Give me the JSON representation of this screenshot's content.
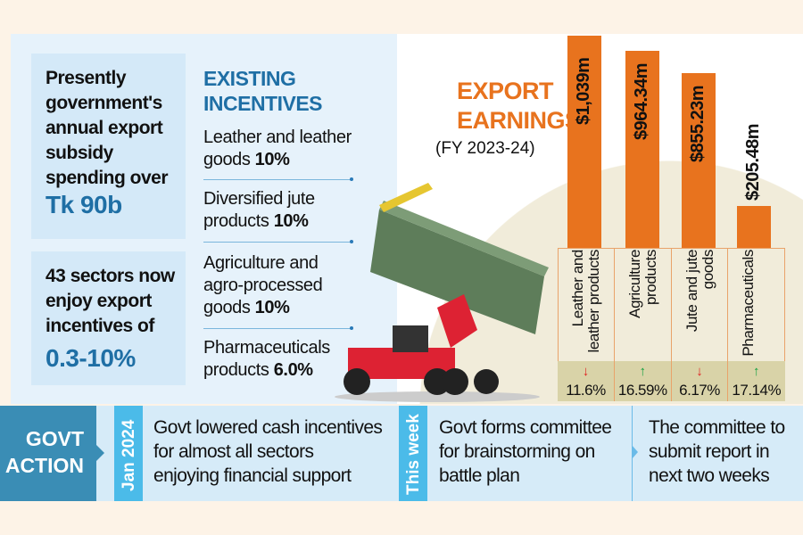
{
  "subsidy_box": {
    "text": "Presently government's annual export subsidy spending over",
    "amount": "Tk 90b"
  },
  "sectors_box": {
    "text": "43 sectors now enjoy export incentives of",
    "range": "0.3-10%"
  },
  "incentives": {
    "title": "EXISTING INCENTIVES",
    "items": [
      {
        "label": "Leather and leather goods",
        "rate": "10%"
      },
      {
        "label": "Diversified jute products",
        "rate": "10%"
      },
      {
        "label": "Agriculture and agro-processed goods",
        "rate": "10%"
      },
      {
        "label": "Pharmaceuticals products",
        "rate": "6.0%"
      }
    ]
  },
  "chart_data": {
    "type": "bar",
    "title": "EXPORT EARNINGS",
    "subtitle": "(FY 2023-24)",
    "categories": [
      "Leather and leather products",
      "Agriculture products",
      "Jute and jute goods",
      "Pharmaceuticals"
    ],
    "values": [
      1039,
      964.34,
      855.23,
      205.48
    ],
    "unit": "million USD",
    "data_labels": [
      "$1,039m",
      "$964.34m",
      "$855.23m",
      "$205.48m"
    ],
    "changes": [
      {
        "text": "11.6%",
        "direction": "down",
        "color": "#e02020"
      },
      {
        "text": "16.59%",
        "direction": "up",
        "color": "#12a040"
      },
      {
        "text": "6.17%",
        "direction": "down",
        "color": "#e02020"
      },
      {
        "text": "17.14%",
        "direction": "up",
        "color": "#12a040"
      }
    ],
    "bar_color": "#e8731e"
  },
  "timeline": {
    "heading": [
      "GOVT",
      "ACTION"
    ],
    "events": [
      {
        "when": "Jan 2024",
        "text": [
          "Govt lowered cash incentives",
          "for almost all sectors",
          "enjoying financial support"
        ]
      },
      {
        "when": "This week",
        "text": [
          "Govt forms committee",
          "for brainstorming on",
          "battle plan"
        ]
      },
      {
        "when": "",
        "text": [
          "The committee to",
          "submit report in",
          "next two weeks"
        ]
      }
    ]
  }
}
